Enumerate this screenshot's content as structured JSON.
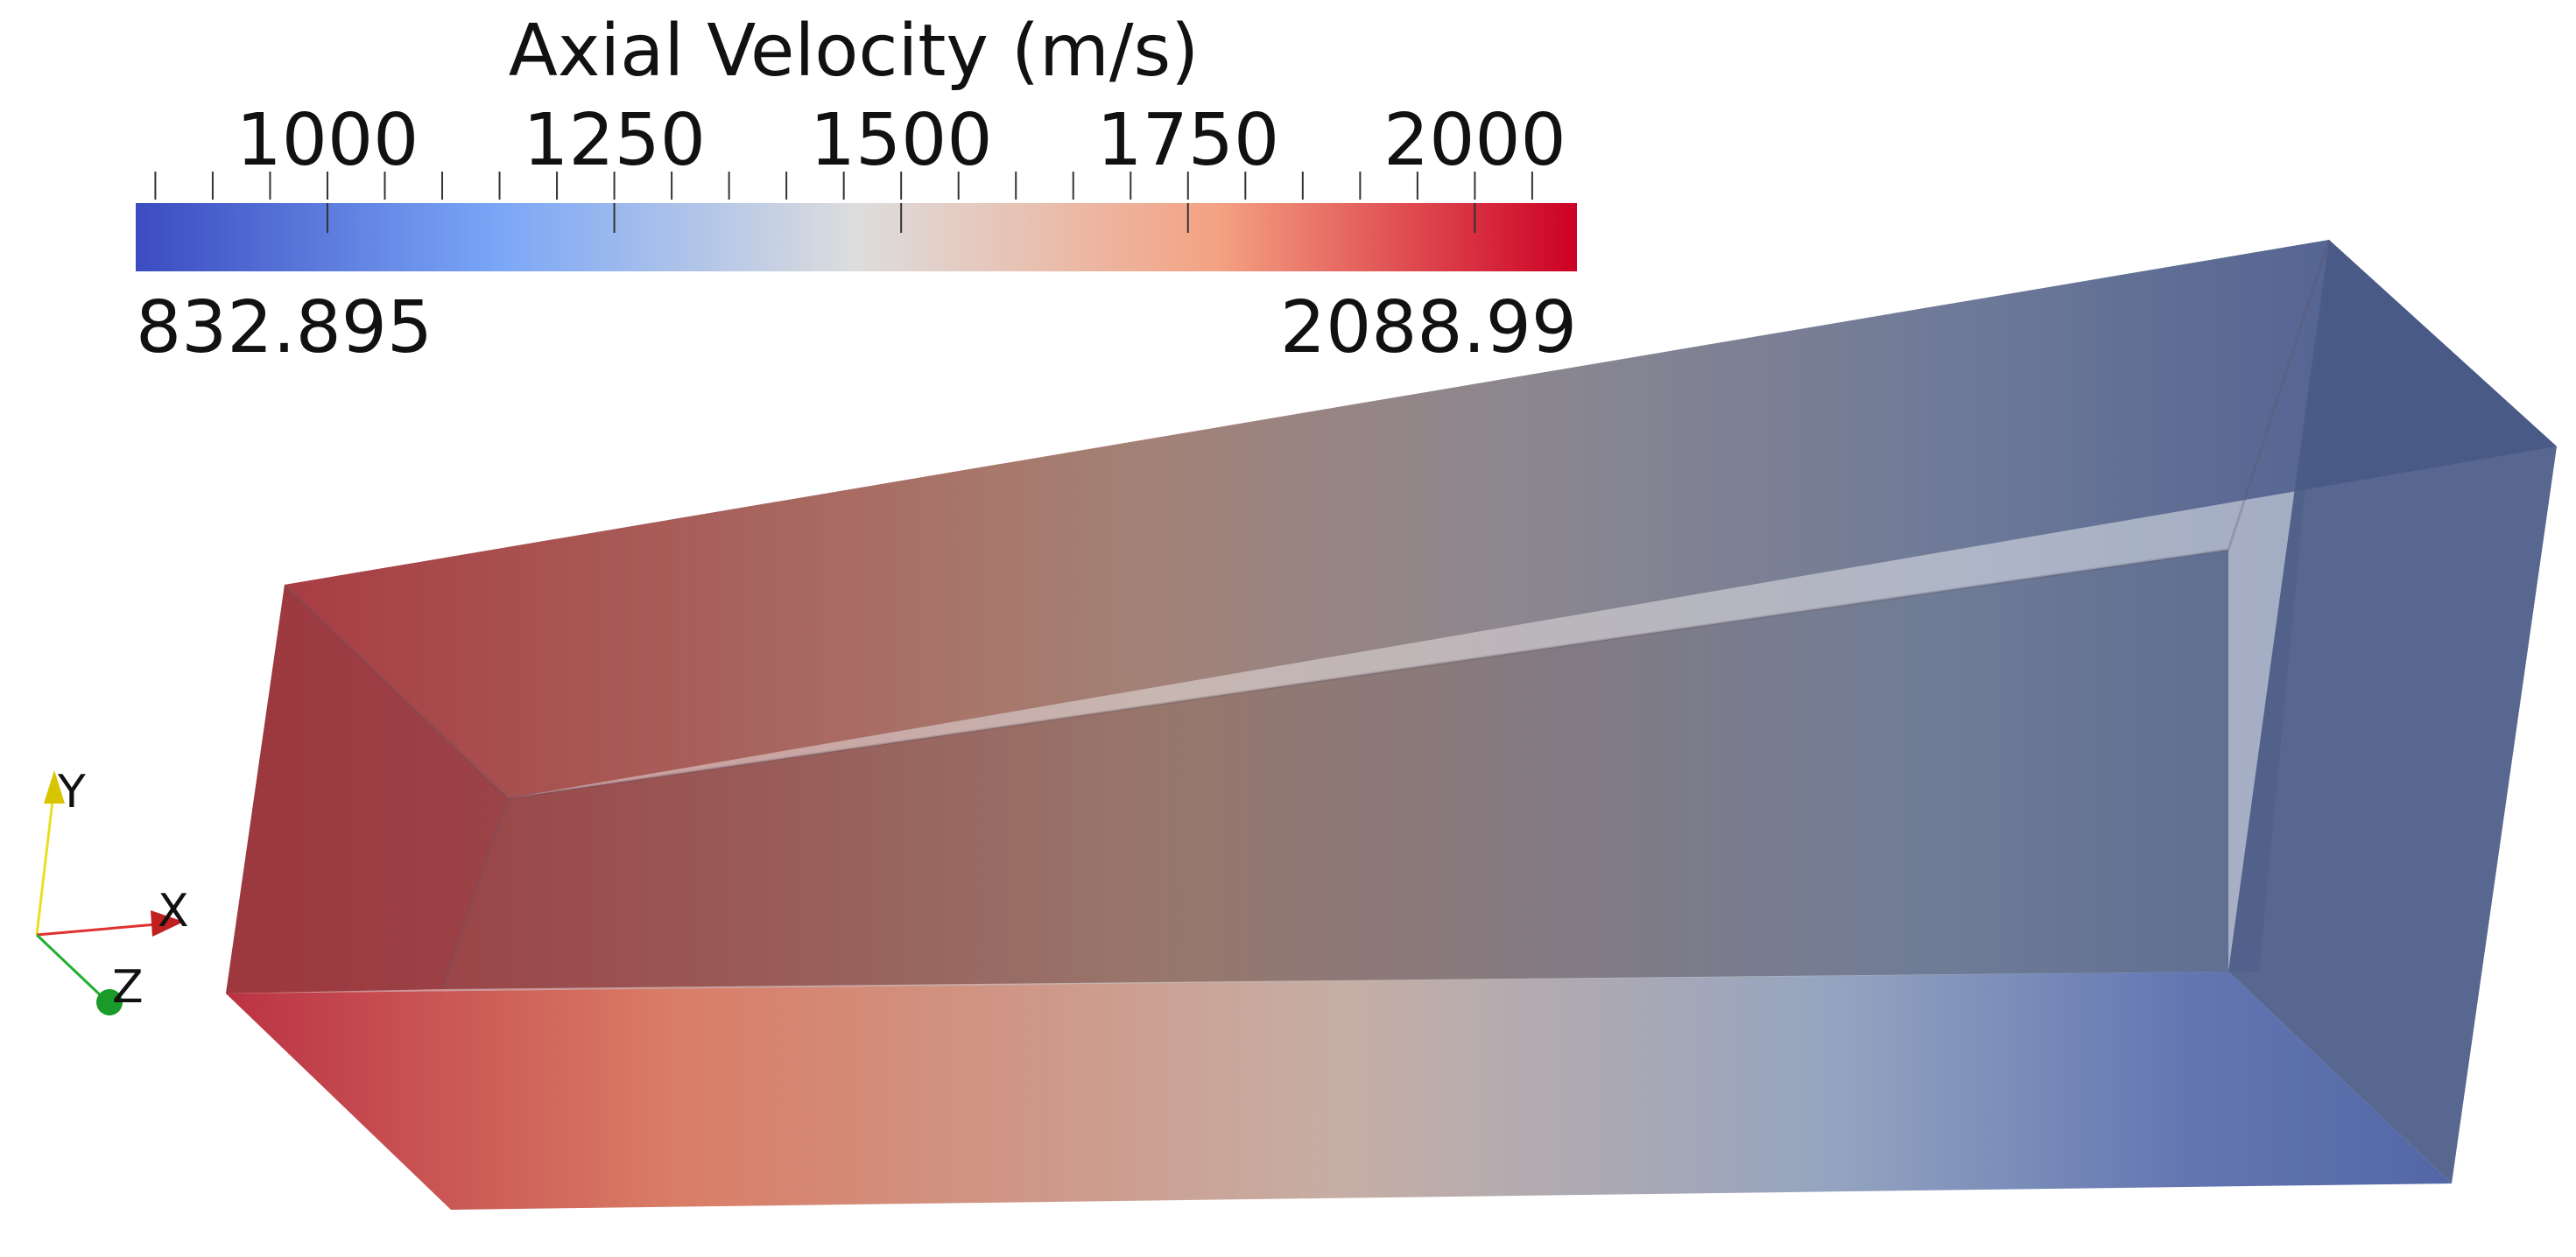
{
  "colorbar": {
    "title": "Axial Velocity (m/s)",
    "min_label": "832.895",
    "max_label": "2088.99",
    "range_min": 832.895,
    "range_max": 2088.99,
    "ticks": [
      1000,
      1250,
      1500,
      1750,
      2000
    ],
    "tick_labels": [
      "1000",
      "1250",
      "1500",
      "1750",
      "2000"
    ],
    "minor_tick_step": 50,
    "colors": {
      "low": "#3b4cc0",
      "mid": "#dddddd",
      "high": "#cc0024"
    }
  },
  "axes_triad": {
    "x_label": "X",
    "y_label": "Y",
    "z_label": "Z",
    "x_color": "#e03030",
    "y_color": "#e8e020",
    "z_color": "#20b030"
  },
  "volume": {
    "shape": "rectangular duct",
    "hot_color": "#b03035",
    "mid_color": "#b0a090",
    "cold_color": "#4a5c95"
  }
}
